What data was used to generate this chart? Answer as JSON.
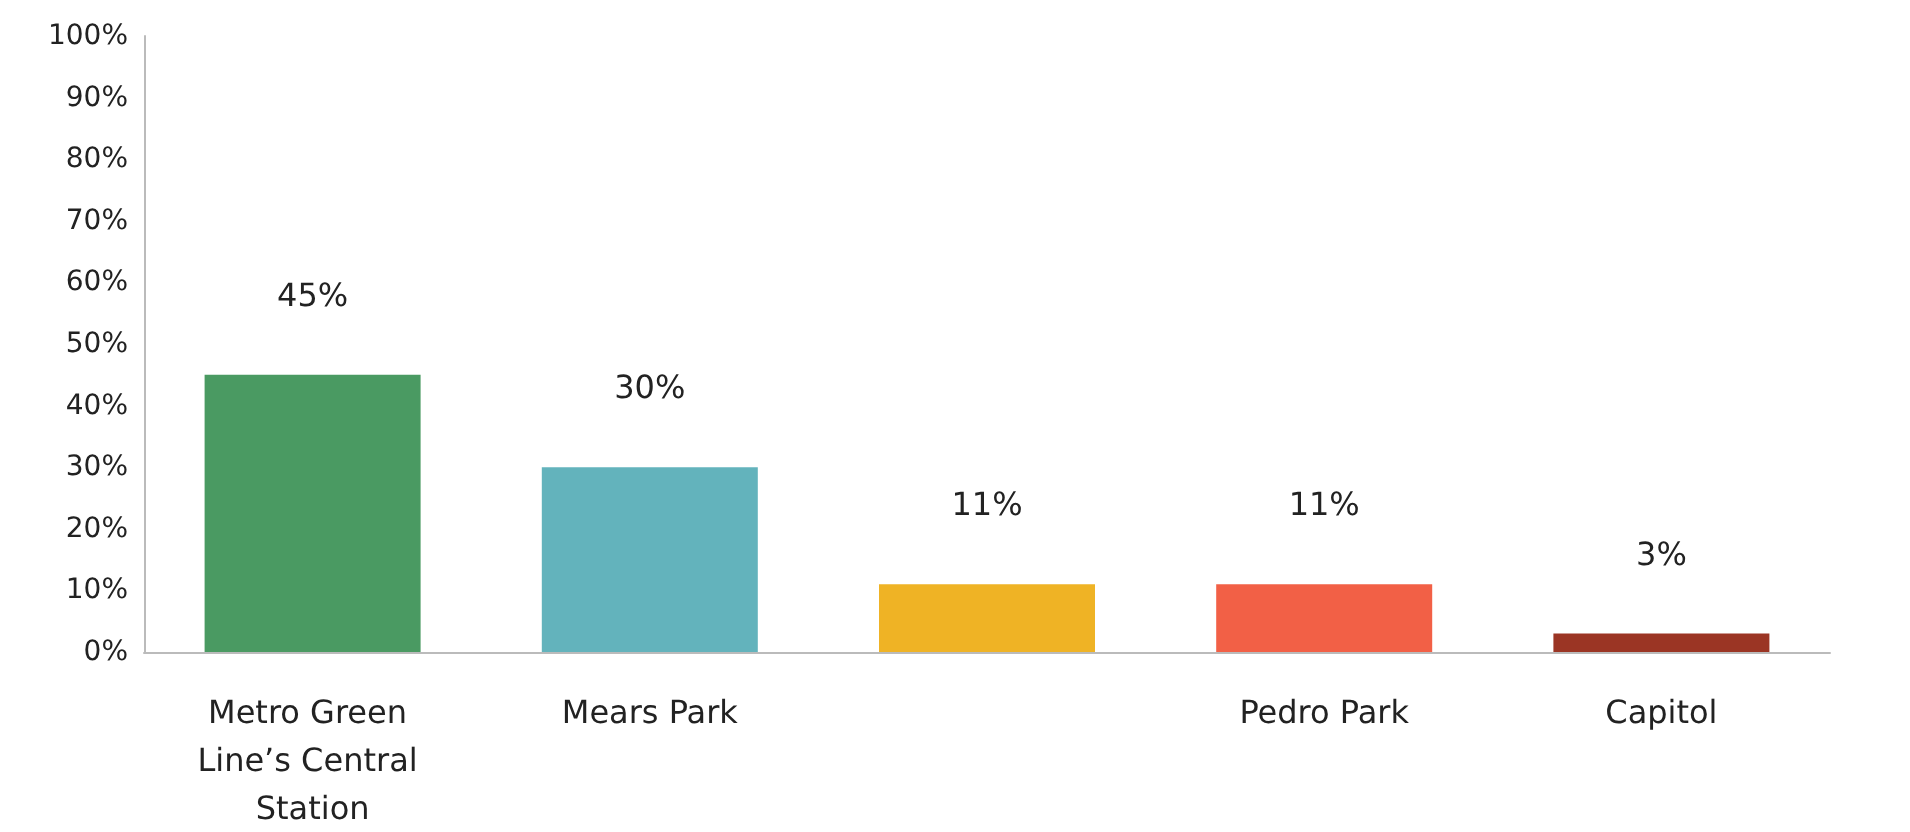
{
  "chart_data": {
    "type": "bar",
    "categories": [
      "Metro Green Line’s Central Station",
      "Mears Park",
      null,
      "Pedro Park",
      "Capitol"
    ],
    "values": [
      45,
      30,
      11,
      11,
      3
    ],
    "colors": [
      "#4a9a62",
      "#63b3bc",
      "#efb325",
      "#f26046",
      "#9b3524"
    ],
    "ylim": [
      0,
      100
    ],
    "yticks": [
      {
        "value": 0,
        "label": "0%"
      },
      {
        "value": 10,
        "label": "10%"
      },
      {
        "value": 20,
        "label": "20%"
      },
      {
        "value": 30,
        "label": "30%"
      },
      {
        "value": 40,
        "label": "40%"
      },
      {
        "value": 50,
        "label": "50%"
      },
      {
        "value": 60,
        "label": "60%"
      },
      {
        "value": 70,
        "label": "70%"
      },
      {
        "value": 80,
        "label": "80%"
      },
      {
        "value": 90,
        "label": "90%"
      },
      {
        "value": 100,
        "label": "100%"
      }
    ],
    "value_labels": [
      "45%",
      "30%",
      "11%",
      "11%",
      "3%"
    ],
    "grid": false
  }
}
